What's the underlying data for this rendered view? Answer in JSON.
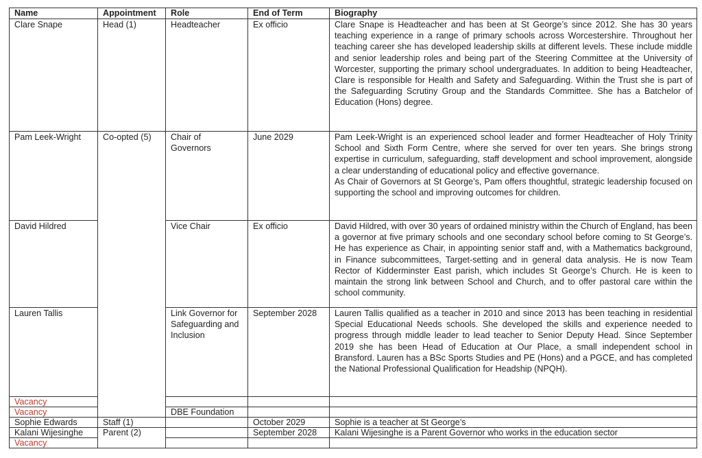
{
  "headers": {
    "name": "Name",
    "appointment": "Appointment",
    "role": "Role",
    "end": "End of Term",
    "bio": "Biography"
  },
  "vacancy_color": "#c0392b",
  "rows": [
    {
      "name": "Clare Snape",
      "appointment": "Head (1)",
      "role": "Headteacher",
      "end": "Ex officio",
      "bio": [
        "Clare Snape  is Headteacher and has been at St George’s since 2012. She has 30 years teaching experience in a range of primary schools across Worcestershire. Throughout her teaching career she has developed leadership skills at different levels. These include middle and senior leadership roles and being part of the Steering Committee at the University of Worcester, supporting the primary school undergraduates. In addition to being Headteacher, Clare is responsible for Health and Safety and Safeguarding. Within the Trust she is part of the Safeguarding Scrutiny Group and the Standards Committee. She has a Batchelor of Education (Hons) degree."
      ]
    },
    {
      "name": "Pam Leek-Wright",
      "appointment": "Co-opted (5)",
      "role": "Chair of Governors",
      "end": "June 2029",
      "bio": [
        "Pam Leek-Wright is an experienced school leader and former Headteacher of Holy Trinity School and Sixth Form Centre, where she served for over ten years. She brings strong expertise in curriculum, safeguarding, staff development and school improvement, alongside a clear understanding of educational policy and effective governance.",
        "As Chair of Governors at St George’s, Pam offers thoughtful, strategic leadership focused on supporting the school and improving outcomes for children."
      ]
    },
    {
      "name": "David Hildred",
      "role": "Vice Chair",
      "end": "Ex officio",
      "bio": [
        "David Hildred, with over 30 years of ordained ministry within the Church of England, has been a governor at five primary schools and one secondary school before coming to St George’s.  He has experience as Chair, in appointing senior staff and, with a Mathematics background, in Finance subcommittees, Target-setting and in general data analysis.  He is now Team Rector of Kidderminster East parish, which includes St George’s Church. He is keen to maintain the strong link between School and Church, and to offer pastoral care within the school community."
      ]
    },
    {
      "name": "Lauren Tallis",
      "role": "Link Governor for Safeguarding and Inclusion",
      "end": "September 2028",
      "bio": [
        "Lauren Tallis qualified as a teacher in 2010 and since 2013 has been teaching in residential Special Educational Needs schools.  She developed the skills and experience needed to progress through middle leader to lead teacher to Senior Deputy Head.  Since September 2019 she has been Head of Education at Our Place, a small independent school in Bransford.  Lauren has a BSc Sports Studies and PE (Hons) and a PGCE, and has completed the National Professional Qualification for Headship (NPQH)."
      ]
    },
    {
      "name": "Vacancy",
      "role": "",
      "end": "",
      "bio": [
        ""
      ]
    },
    {
      "name": "Vacancy",
      "role": "DBE Foundation",
      "end": "",
      "bio": [
        ""
      ]
    },
    {
      "name": "Sophie Edwards",
      "appointment": "Staff (1)",
      "role": "",
      "end": "October 2029",
      "bio": [
        "Sophie is a teacher at St George’s"
      ]
    },
    {
      "name": "Kalani Wijesinghe",
      "appointment": "Parent (2)",
      "role": "",
      "end": "September 2028",
      "bio": [
        "Kalani Wijesinghe is a Parent Governor who works in the education sector"
      ]
    },
    {
      "name": "Vacancy",
      "role": "",
      "end": "",
      "bio": [
        ""
      ]
    }
  ]
}
